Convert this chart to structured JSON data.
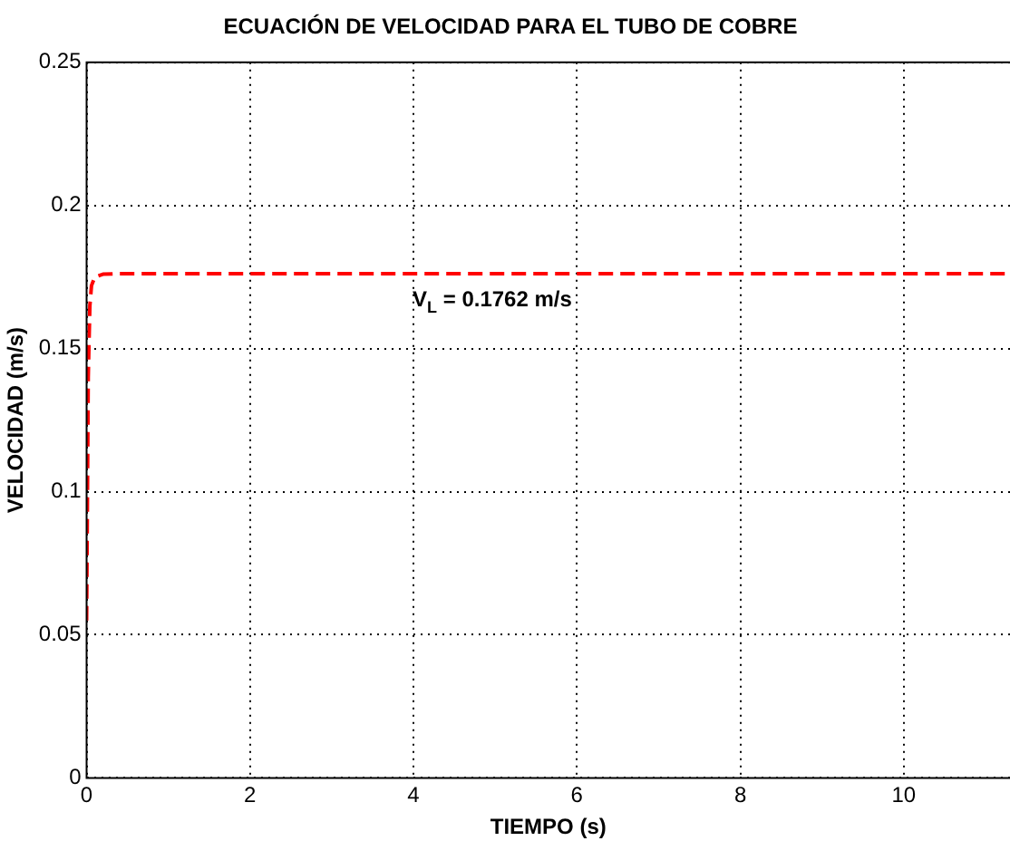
{
  "chart_data": {
    "type": "line",
    "title": "ECUACIÓN DE VELOCIDAD PARA EL TUBO DE COBRE",
    "xlabel": "TIEMPO (s)",
    "ylabel": "VELOCIDAD (m/s)",
    "series": [
      {
        "color": "#ff0000",
        "x": [
          0,
          0.02,
          0.04,
          0.06,
          0.1,
          0.2,
          0.4,
          11.3
        ],
        "values": [
          0.055,
          0.14,
          0.165,
          0.172,
          0.175,
          0.176,
          0.1762,
          0.1762
        ]
      }
    ],
    "xlim": [
      0,
      11.3
    ],
    "xticks": [
      0,
      2,
      4,
      6,
      8,
      10
    ],
    "ylim": [
      0,
      0.25
    ],
    "yticks": [
      0,
      0.05,
      0.1,
      0.15,
      0.2,
      0.25
    ],
    "grid": true,
    "line_style": "dashed",
    "marker": "none",
    "annotations": [
      "V$_{L}$ = 0.1762 m/s"
    ]
  }
}
